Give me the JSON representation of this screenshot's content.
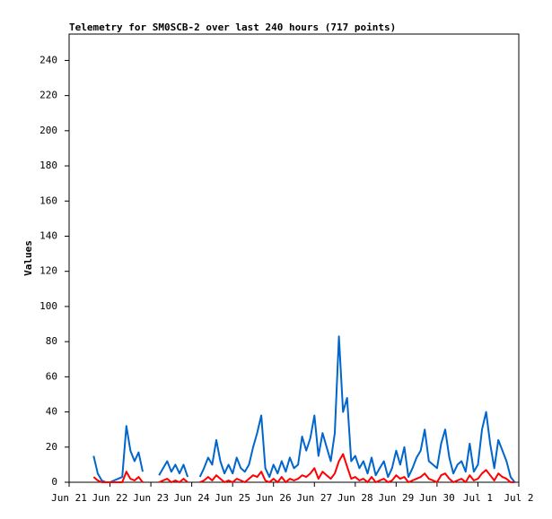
{
  "chart_data": {
    "type": "line",
    "title": "Telemetry for SM0SCB-2 over last 240 hours (717 points)",
    "y_label": "Values",
    "x": [
      0.6,
      0.7,
      0.8,
      0.9,
      1.0,
      1.1,
      1.2,
      1.3,
      1.4,
      1.5,
      1.6,
      1.7,
      1.8,
      1.9,
      2.0,
      2.1,
      2.2,
      2.3,
      2.4,
      2.5,
      2.6,
      2.7,
      2.8,
      2.9,
      3.0,
      3.1,
      3.2,
      3.3,
      3.4,
      3.5,
      3.6,
      3.7,
      3.8,
      3.9,
      4.0,
      4.1,
      4.2,
      4.3,
      4.4,
      4.5,
      4.6,
      4.7,
      4.8,
      4.9,
      5.0,
      5.1,
      5.2,
      5.3,
      5.4,
      5.5,
      5.6,
      5.7,
      5.8,
      5.9,
      6.0,
      6.1,
      6.2,
      6.3,
      6.4,
      6.5,
      6.6,
      6.7,
      6.8,
      6.9,
      7.0,
      7.1,
      7.2,
      7.3,
      7.4,
      7.5,
      7.6,
      7.7,
      7.8,
      7.9,
      8.0,
      8.1,
      8.2,
      8.3,
      8.4,
      8.5,
      8.6,
      8.7,
      8.8,
      8.9,
      9.0,
      9.1,
      9.2,
      9.3,
      9.4,
      9.5,
      9.6,
      9.7,
      9.8,
      9.9,
      10.0,
      10.1,
      10.2,
      10.3,
      10.4,
      10.5,
      10.6,
      10.7,
      10.8,
      10.9
    ],
    "series": [
      {
        "color": "#0066cc",
        "values": [
          15,
          5,
          1,
          0,
          0,
          1,
          2,
          3,
          32,
          18,
          12,
          17,
          6,
          null,
          null,
          null,
          4,
          8,
          12,
          6,
          10,
          5,
          10,
          3,
          null,
          null,
          3,
          8,
          14,
          10,
          24,
          12,
          5,
          10,
          5,
          14,
          8,
          6,
          10,
          20,
          28,
          38,
          8,
          3,
          10,
          5,
          12,
          6,
          14,
          8,
          10,
          26,
          18,
          25,
          38,
          15,
          28,
          20,
          12,
          28,
          83,
          40,
          48,
          12,
          15,
          8,
          12,
          5,
          14,
          4,
          8,
          12,
          3,
          8,
          18,
          10,
          20,
          3,
          8,
          14,
          18,
          30,
          12,
          10,
          8,
          22,
          30,
          14,
          5,
          10,
          12,
          6,
          22,
          6,
          10,
          30,
          40,
          22,
          8,
          24,
          18,
          12,
          3,
          0
        ]
      },
      {
        "color": "#ff0000",
        "values": [
          3,
          1,
          0,
          0,
          0,
          0,
          0,
          0,
          6,
          2,
          1,
          3,
          0,
          null,
          null,
          null,
          0,
          1,
          2,
          0,
          1,
          0,
          2,
          0,
          null,
          null,
          0,
          1,
          3,
          1,
          4,
          2,
          0,
          1,
          0,
          2,
          1,
          0,
          2,
          4,
          3,
          6,
          1,
          0,
          2,
          0,
          3,
          0,
          2,
          1,
          2,
          4,
          3,
          5,
          8,
          2,
          6,
          4,
          2,
          5,
          12,
          16,
          9,
          2,
          3,
          1,
          2,
          0,
          3,
          0,
          1,
          2,
          0,
          1,
          4,
          2,
          3,
          0,
          1,
          2,
          3,
          5,
          2,
          1,
          0,
          4,
          5,
          2,
          0,
          1,
          2,
          0,
          4,
          1,
          2,
          5,
          7,
          4,
          1,
          5,
          3,
          2,
          0,
          0
        ]
      }
    ],
    "xlim": [
      0,
      11
    ],
    "xticks": [
      {
        "value": 0,
        "label": "Jun 21"
      },
      {
        "value": 1,
        "label": "Jun 22"
      },
      {
        "value": 2,
        "label": "Jun 23"
      },
      {
        "value": 3,
        "label": "Jun 24"
      },
      {
        "value": 4,
        "label": "Jun 25"
      },
      {
        "value": 5,
        "label": "Jun 26"
      },
      {
        "value": 6,
        "label": "Jun 27"
      },
      {
        "value": 7,
        "label": "Jun 28"
      },
      {
        "value": 8,
        "label": "Jun 29"
      },
      {
        "value": 9,
        "label": "Jun 30"
      },
      {
        "value": 10,
        "label": "Jul 1"
      },
      {
        "value": 11,
        "label": "Jul 2"
      }
    ],
    "ylim": [
      0,
      255
    ],
    "yticks": [
      0,
      20,
      40,
      60,
      80,
      100,
      120,
      140,
      160,
      180,
      200,
      220,
      240
    ]
  }
}
